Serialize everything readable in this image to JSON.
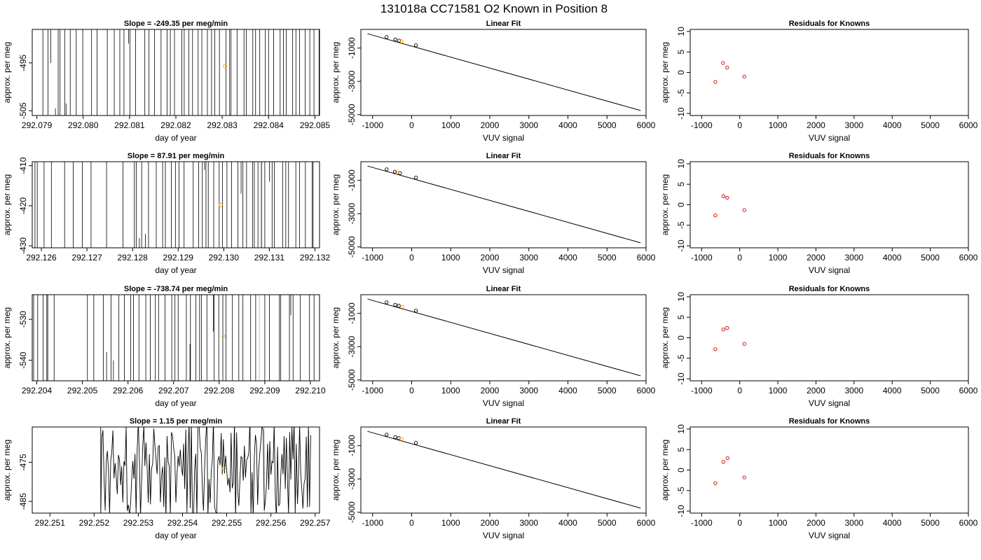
{
  "figure_title": "131018a      CC71581   O2 Known in Position  8",
  "colors": {
    "trace": "#000000",
    "raw": "#000000",
    "gap": "#bebebe",
    "known_point": "#ffa500",
    "fit_point": "#000000",
    "residual_point": "#cd0000",
    "fit_line": "#000000"
  },
  "chart_data": [
    {
      "id": "r1-trace",
      "type": "line",
      "row": 0,
      "col": 0,
      "title": "Slope =  -249.35  per meg/min",
      "xlabel": "day of year",
      "ylabel": "approx. per meg",
      "xlim": [
        292.0789,
        292.0851
      ],
      "ylim": [
        -506,
        -488
      ],
      "xticks": [
        292.079,
        292.08,
        292.081,
        292.082,
        292.083,
        292.084,
        292.085
      ],
      "xtick_labels": [
        "292.079",
        "292.080",
        "292.081",
        "292.082",
        "292.083",
        "292.084",
        "292.085"
      ],
      "yticks": [
        -505,
        -495
      ],
      "ytick_labels": [
        "-505",
        "-495"
      ],
      "spikes": [
        292.07913,
        292.07924,
        292.07946,
        292.0795,
        292.0796,
        292.07972,
        292.07985,
        292.07999,
        292.08018,
        292.0803,
        292.08052,
        292.08067,
        292.08079,
        292.08088,
        292.08101,
        292.08113,
        292.08133,
        292.08142,
        292.08154,
        292.08168,
        292.08181,
        292.08188,
        292.08197,
        292.08213,
        292.08218,
        292.08228,
        292.08236,
        292.08248,
        292.08256,
        292.08268,
        292.08277,
        292.08284,
        292.08294,
        292.08308,
        292.08316,
        292.08319,
        292.08332,
        292.08347,
        292.08352,
        292.08366,
        292.08372,
        292.08381,
        292.08393,
        292.084,
        292.08411,
        292.08425,
        292.08432,
        292.08438,
        292.08452,
        292.08459,
        292.08467,
        292.08479,
        292.08489,
        292.08498,
        292.08509,
        292.08511
      ],
      "short_spikes": [
        [
          292.0793,
          -495.0
        ],
        [
          292.0794,
          -504.5
        ],
        [
          292.07963,
          -503.5
        ],
        [
          292.08098,
          -491.0
        ]
      ],
      "gaps": [],
      "known": {
        "x": [
          292.08306
        ],
        "y": [
          -495.7
        ]
      }
    },
    {
      "id": "r2-trace",
      "type": "line",
      "row": 1,
      "col": 0,
      "title": "Slope =  87.91  per meg/min",
      "xlabel": "day of year",
      "ylabel": "approx. per meg",
      "xlim": [
        292.1258,
        292.1321
      ],
      "ylim": [
        -430.5,
        -409
      ],
      "xticks": [
        292.126,
        292.127,
        292.128,
        292.129,
        292.13,
        292.131,
        292.132
      ],
      "xtick_labels": [
        "292.126",
        "292.127",
        "292.128",
        "292.129",
        "292.130",
        "292.131",
        "292.132"
      ],
      "yticks": [
        -430,
        -420,
        -410
      ],
      "ytick_labels": [
        "-430",
        "-420",
        "-410"
      ],
      "spikes": [
        292.12586,
        292.12591,
        292.12606,
        292.12622,
        292.12651,
        292.1267,
        292.1269,
        292.12709,
        292.12743,
        292.12779,
        292.12804,
        292.12808,
        292.1282,
        292.12835,
        292.12852,
        292.12866,
        292.12872,
        292.12885,
        292.12894,
        292.12902,
        292.12913,
        292.12933,
        292.12945,
        292.12953,
        292.12961,
        292.12966,
        292.12978,
        292.1299,
        292.12997,
        292.13007,
        292.13017,
        292.13031,
        292.13042,
        292.1305,
        292.13063,
        292.13067,
        292.13075,
        292.13083,
        292.1309,
        292.13106,
        292.13111,
        292.13129,
        292.13136,
        292.13142,
        292.13158,
        292.13166,
        292.13179,
        292.13194,
        292.13196
      ],
      "short_spikes": [
        [
          292.12815,
          -428.0
        ],
        [
          292.12828,
          -427.0
        ],
        [
          292.12958,
          -411.0
        ],
        [
          292.13038,
          -417.0
        ],
        [
          292.131,
          -414.0
        ]
      ],
      "gaps": [
        292.1308
      ],
      "known": {
        "x": [
          292.12993
        ],
        "y": [
          -419.8
        ]
      }
    },
    {
      "id": "r3-trace",
      "type": "line",
      "row": 2,
      "col": 0,
      "title": "Slope =  -738.74  per meg/min",
      "xlabel": "day of year",
      "ylabel": "approx. per meg",
      "xlim": [
        292.2039,
        292.2102
      ],
      "ylim": [
        -545,
        -524
      ],
      "xticks": [
        292.204,
        292.205,
        292.206,
        292.207,
        292.208,
        292.209,
        292.21
      ],
      "xtick_labels": [
        "292.204",
        "292.205",
        "292.206",
        "292.207",
        "292.208",
        "292.209",
        "292.210"
      ],
      "yticks": [
        -540,
        -530
      ],
      "ytick_labels": [
        "-540",
        "-530"
      ],
      "spikes": [
        292.20393,
        292.20402,
        292.20414,
        292.20422,
        292.20424,
        292.20438,
        292.20511,
        292.20525,
        292.20546,
        292.20563,
        292.2058,
        292.20592,
        292.20606,
        292.20612,
        292.20624,
        292.20639,
        292.20649,
        292.2066,
        292.20667,
        292.20681,
        292.20696,
        292.20703,
        292.2071,
        292.20728,
        292.20737,
        292.20749,
        292.20757,
        292.20761,
        292.20773,
        292.20789,
        292.20799,
        292.20808,
        292.20815,
        292.20829,
        292.20843,
        292.20852,
        292.20869,
        292.2088,
        292.209,
        292.2091,
        292.20932,
        292.20935,
        292.20954,
        292.20962,
        292.20978,
        292.20998,
        292.21008
      ],
      "short_spikes": [
        [
          292.20553,
          -538.0
        ],
        [
          292.20568,
          -540.0
        ],
        [
          292.20736,
          -536.0
        ],
        [
          292.20787,
          -533.0
        ],
        [
          292.20957,
          -529.0
        ]
      ],
      "gaps": [
        292.20888
      ],
      "known": {
        "x": [
          292.2081
        ],
        "y": [
          -534.2
        ]
      }
    },
    {
      "id": "r4-trace",
      "type": "line",
      "row": 3,
      "col": 0,
      "title": "Slope =  1.15  per meg/min",
      "xlabel": "day of year",
      "ylabel": "approx. per meg",
      "xlim": [
        292.2506,
        292.2571
      ],
      "ylim": [
        -488,
        -466
      ],
      "xticks": [
        292.251,
        292.252,
        292.253,
        292.254,
        292.255,
        292.256,
        292.257
      ],
      "xtick_labels": [
        "292.251",
        "292.252",
        "292.253",
        "292.254",
        "292.255",
        "292.256",
        "292.257"
      ],
      "yticks": [
        -485,
        -475
      ],
      "ytick_labels": [
        "-485",
        "-475"
      ],
      "wave": {
        "x_start": 292.25215,
        "x_end": 292.25692,
        "step": 2.5e-05,
        "center": -477.0,
        "amplitude": 9.5,
        "seed": 131018
      },
      "gaps": [
        292.25585
      ],
      "known": {
        "x": [
          292.25493
        ],
        "y": [
          -476.6
        ]
      }
    },
    {
      "id": "r1-fit",
      "type": "scatter",
      "row": 0,
      "col": 1,
      "title": "Linear Fit",
      "xlabel": "VUV signal",
      "ylabel": "approx. per meg",
      "xlim": [
        -1300,
        6000
      ],
      "ylim": [
        -5050,
        120
      ],
      "xticks": [
        -1000,
        0,
        1000,
        2000,
        3000,
        4000,
        5000,
        6000
      ],
      "xtick_labels": [
        "-1000",
        "0",
        "1000",
        "2000",
        "3000",
        "4000",
        "5000",
        "6000"
      ],
      "yticks": [
        -5000,
        -3000,
        -1000
      ],
      "ytick_labels": [
        "-5000",
        "-3000",
        "-1000"
      ],
      "line": {
        "x": [
          -1130,
          5860
        ],
        "y": [
          -140,
          -4750
        ]
      },
      "points": {
        "x": [
          -640,
          -420,
          -320,
          110
        ],
        "y": [
          -337,
          -485,
          -551,
          -836
        ]
      },
      "known": {
        "x": [
          -260
        ],
        "y": [
          -592
        ]
      }
    },
    {
      "id": "r2-fit",
      "type": "scatter",
      "row": 1,
      "col": 1,
      "title": "Linear Fit",
      "xlabel": "VUV signal",
      "ylabel": "approx. per meg",
      "xlim": [
        -1300,
        6000
      ],
      "ylim": [
        -5050,
        120
      ],
      "xticks": [
        -1000,
        0,
        1000,
        2000,
        3000,
        4000,
        5000,
        6000
      ],
      "xtick_labels": [
        "-1000",
        "0",
        "1000",
        "2000",
        "3000",
        "4000",
        "5000",
        "6000"
      ],
      "yticks": [
        -5000,
        -3000,
        -1000
      ],
      "ytick_labels": [
        "-5000",
        "-3000",
        "-1000"
      ],
      "line": {
        "x": [
          -1130,
          5860
        ],
        "y": [
          -140,
          -4750
        ]
      },
      "points": {
        "x": [
          -640,
          -430,
          -300,
          110
        ],
        "y": [
          -337,
          -478,
          -565,
          -836
        ]
      },
      "known": {
        "x": [
          -380
        ],
        "y": [
          -512
        ]
      }
    },
    {
      "id": "r3-fit",
      "type": "scatter",
      "row": 2,
      "col": 1,
      "title": "Linear Fit",
      "xlabel": "VUV signal",
      "ylabel": "approx. per meg",
      "xlim": [
        -1300,
        6000
      ],
      "ylim": [
        -5050,
        120
      ],
      "xticks": [
        -1000,
        0,
        1000,
        2000,
        3000,
        4000,
        5000,
        6000
      ],
      "xtick_labels": [
        "-1000",
        "0",
        "1000",
        "2000",
        "3000",
        "4000",
        "5000",
        "6000"
      ],
      "yticks": [
        -5000,
        -3000,
        -1000
      ],
      "ytick_labels": [
        "-5000",
        "-3000",
        "-1000"
      ],
      "line": {
        "x": [
          -1130,
          5860
        ],
        "y": [
          -140,
          -4750
        ]
      },
      "points": {
        "x": [
          -640,
          -420,
          -330,
          110
        ],
        "y": [
          -337,
          -485,
          -545,
          -836
        ]
      },
      "known": {
        "x": [
          -240
        ],
        "y": [
          -605
        ]
      }
    },
    {
      "id": "r4-fit",
      "type": "scatter",
      "row": 3,
      "col": 1,
      "title": "Linear Fit",
      "xlabel": "VUV signal",
      "ylabel": "approx. per meg",
      "xlim": [
        -1300,
        6000
      ],
      "ylim": [
        -5050,
        120
      ],
      "xticks": [
        -1000,
        0,
        1000,
        2000,
        3000,
        4000,
        5000,
        6000
      ],
      "xtick_labels": [
        "-1000",
        "0",
        "1000",
        "2000",
        "3000",
        "4000",
        "5000",
        "6000"
      ],
      "yticks": [
        -5000,
        -3000,
        -1000
      ],
      "ytick_labels": [
        "-5000",
        "-3000",
        "-1000"
      ],
      "line": {
        "x": [
          -1130,
          5860
        ],
        "y": [
          -140,
          -4750
        ]
      },
      "points": {
        "x": [
          -640,
          -420,
          -330,
          110
        ],
        "y": [
          -337,
          -485,
          -545,
          -836
        ]
      },
      "known": {
        "x": [
          -260
        ],
        "y": [
          -592
        ]
      }
    },
    {
      "id": "r1-resid",
      "type": "scatter",
      "row": 0,
      "col": 2,
      "title": "Residuals for Knowns",
      "xlabel": "VUV signal",
      "ylabel": "approx. per meg",
      "xlim": [
        -1300,
        6000
      ],
      "ylim": [
        -10.5,
        10.5
      ],
      "xticks": [
        -1000,
        0,
        1000,
        2000,
        3000,
        4000,
        5000,
        6000
      ],
      "xtick_labels": [
        "-1000",
        "0",
        "1000",
        "2000",
        "3000",
        "4000",
        "5000",
        "6000"
      ],
      "yticks": [
        -10,
        -5,
        0,
        5,
        10
      ],
      "ytick_labels": [
        "-10",
        "-5",
        "0",
        "5",
        "10"
      ],
      "points": {
        "x": [
          -640,
          -440,
          -330,
          120
        ],
        "y": [
          -2.3,
          2.3,
          1.2,
          -1.0
        ]
      }
    },
    {
      "id": "r2-resid",
      "type": "scatter",
      "row": 1,
      "col": 2,
      "title": "Residuals for Knowns",
      "xlabel": "VUV signal",
      "ylabel": "approx. per meg",
      "xlim": [
        -1300,
        6000
      ],
      "ylim": [
        -10.5,
        10.5
      ],
      "xticks": [
        -1000,
        0,
        1000,
        2000,
        3000,
        4000,
        5000,
        6000
      ],
      "xtick_labels": [
        "-1000",
        "0",
        "1000",
        "2000",
        "3000",
        "4000",
        "5000",
        "6000"
      ],
      "yticks": [
        -10,
        -5,
        0,
        5,
        10
      ],
      "ytick_labels": [
        "-10",
        "-5",
        "0",
        "5",
        "10"
      ],
      "points": {
        "x": [
          -640,
          -430,
          -330,
          120
        ],
        "y": [
          -2.6,
          2.1,
          1.7,
          -1.3
        ]
      }
    },
    {
      "id": "r3-resid",
      "type": "scatter",
      "row": 2,
      "col": 2,
      "title": "Residuals for Knowns",
      "xlabel": "VUV signal",
      "ylabel": "approx. per meg",
      "xlim": [
        -1300,
        6000
      ],
      "ylim": [
        -10.5,
        10.5
      ],
      "xticks": [
        -1000,
        0,
        1000,
        2000,
        3000,
        4000,
        5000,
        6000
      ],
      "xtick_labels": [
        "-1000",
        "0",
        "1000",
        "2000",
        "3000",
        "4000",
        "5000",
        "6000"
      ],
      "yticks": [
        -10,
        -5,
        0,
        5,
        10
      ],
      "ytick_labels": [
        "-10",
        "-5",
        "0",
        "5",
        "10"
      ],
      "points": {
        "x": [
          -640,
          -430,
          -330,
          120
        ],
        "y": [
          -2.8,
          2.0,
          2.4,
          -1.5
        ]
      }
    },
    {
      "id": "r4-resid",
      "type": "scatter",
      "row": 3,
      "col": 2,
      "title": "Residuals for Knowns",
      "xlabel": "VUV signal",
      "ylabel": "approx. per meg",
      "xlim": [
        -1300,
        6000
      ],
      "ylim": [
        -10.5,
        10.5
      ],
      "xticks": [
        -1000,
        0,
        1000,
        2000,
        3000,
        4000,
        5000,
        6000
      ],
      "xtick_labels": [
        "-1000",
        "0",
        "1000",
        "2000",
        "3000",
        "4000",
        "5000",
        "6000"
      ],
      "yticks": [
        -10,
        -5,
        0,
        5,
        10
      ],
      "ytick_labels": [
        "-10",
        "-5",
        "0",
        "5",
        "10"
      ],
      "points": {
        "x": [
          -640,
          -430,
          -320,
          120
        ],
        "y": [
          -3.2,
          2.0,
          2.9,
          -1.8
        ]
      }
    }
  ]
}
